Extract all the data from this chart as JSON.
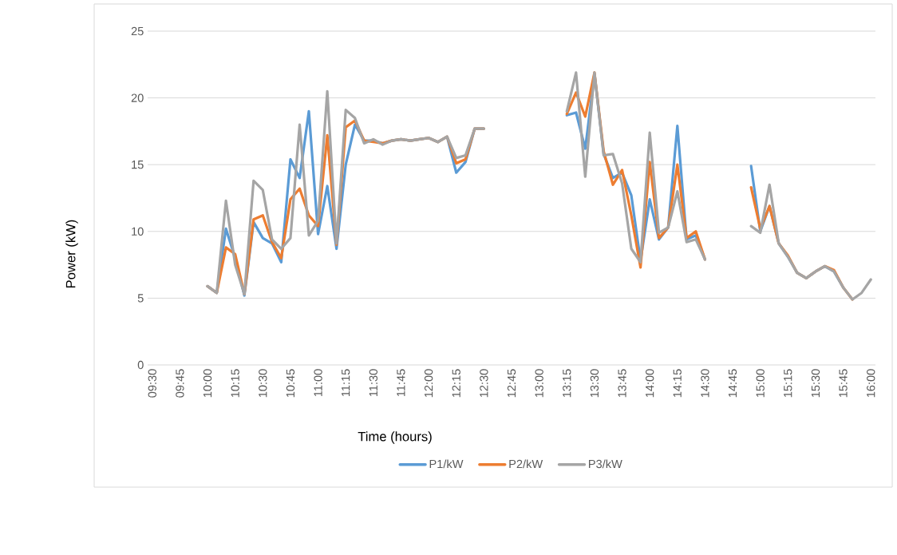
{
  "chart_data": {
    "type": "line",
    "xlabel": "Time (hours)",
    "ylabel": "Power (kW)",
    "categories": [
      "09:30",
      null,
      null,
      "09:45",
      null,
      null,
      "10:00",
      null,
      null,
      "10:15",
      null,
      null,
      "10:30",
      null,
      null,
      "10:45",
      null,
      null,
      "11:00",
      null,
      null,
      "11:15",
      null,
      null,
      "11:30",
      null,
      null,
      "11:45",
      null,
      null,
      "12:00",
      null,
      null,
      "12:15",
      null,
      null,
      "12:30",
      null,
      null,
      "12:45",
      null,
      null,
      "13:00",
      null,
      null,
      "13:15",
      null,
      null,
      "13:30",
      null,
      null,
      "13:45",
      null,
      null,
      "14:00",
      null,
      null,
      "14:15",
      null,
      null,
      "14:30",
      null,
      null,
      "14:45",
      null,
      null,
      "15:00",
      null,
      null,
      "15:15",
      null,
      null,
      "15:30",
      null,
      null,
      "15:45",
      null,
      null,
      "16:00"
    ],
    "series": [
      {
        "name": "P1/kW",
        "color": "#5b9bd5",
        "values": [
          null,
          null,
          null,
          null,
          null,
          null,
          5.9,
          5.4,
          10.2,
          8.0,
          5.2,
          10.7,
          9.5,
          9.1,
          7.7,
          15.4,
          14.0,
          19.0,
          9.8,
          13.4,
          8.7,
          15.0,
          18.0,
          16.8,
          16.8,
          16.6,
          16.8,
          16.9,
          16.8,
          16.9,
          17.0,
          16.7,
          17.1,
          14.4,
          15.2,
          17.7,
          17.7,
          null,
          null,
          null,
          null,
          null,
          null,
          null,
          null,
          18.7,
          18.9,
          16.2,
          21.8,
          15.8,
          14.0,
          14.4,
          12.7,
          7.8,
          12.4,
          9.4,
          10.3,
          17.9,
          9.4,
          9.7,
          7.9,
          null,
          null,
          null,
          null,
          14.9,
          10.0,
          11.9,
          9.1,
          8.1,
          6.9,
          6.5,
          7.0,
          7.4,
          7.0,
          5.8,
          null,
          null,
          null
        ]
      },
      {
        "name": "P2/kW",
        "color": "#ed7d31",
        "values": [
          null,
          null,
          null,
          null,
          null,
          null,
          5.9,
          5.4,
          8.8,
          8.3,
          5.3,
          10.9,
          11.2,
          9.2,
          8.0,
          12.4,
          13.2,
          11.2,
          10.4,
          17.2,
          9.0,
          17.8,
          18.3,
          16.8,
          16.7,
          16.6,
          16.8,
          16.9,
          16.8,
          16.9,
          17.0,
          16.7,
          17.1,
          15.1,
          15.4,
          17.7,
          17.7,
          null,
          null,
          null,
          null,
          null,
          null,
          null,
          null,
          18.8,
          20.4,
          18.6,
          21.9,
          16.0,
          13.5,
          14.6,
          11.2,
          7.3,
          15.2,
          9.5,
          10.3,
          15.0,
          9.5,
          10.0,
          7.9,
          null,
          null,
          null,
          null,
          13.3,
          10.2,
          11.9,
          9.1,
          8.2,
          6.9,
          6.5,
          7.0,
          7.4,
          7.1,
          5.8,
          4.9,
          null,
          null
        ]
      },
      {
        "name": "P3/kW",
        "color": "#a5a5a5",
        "values": [
          null,
          null,
          null,
          null,
          null,
          null,
          5.9,
          5.4,
          12.3,
          7.5,
          5.3,
          13.8,
          13.1,
          9.4,
          8.7,
          9.5,
          18.0,
          9.7,
          10.8,
          20.5,
          9.1,
          19.1,
          18.5,
          16.6,
          16.9,
          16.5,
          16.8,
          16.9,
          16.8,
          16.9,
          17.0,
          16.7,
          17.1,
          15.5,
          15.7,
          17.7,
          17.7,
          null,
          null,
          null,
          null,
          null,
          null,
          null,
          null,
          19.0,
          21.9,
          14.1,
          21.9,
          15.7,
          15.8,
          13.6,
          8.7,
          7.7,
          17.4,
          9.9,
          10.3,
          13.0,
          9.2,
          9.4,
          7.9,
          null,
          null,
          null,
          null,
          10.4,
          9.9,
          13.5,
          9.1,
          8.1,
          6.9,
          6.5,
          7.0,
          7.4,
          7.0,
          5.8,
          4.9,
          5.4,
          6.4
        ]
      }
    ],
    "ylim": [
      0,
      25
    ],
    "yticks": [
      0,
      5,
      10,
      15,
      20,
      25
    ],
    "grid": "y",
    "legend": "bottom"
  }
}
